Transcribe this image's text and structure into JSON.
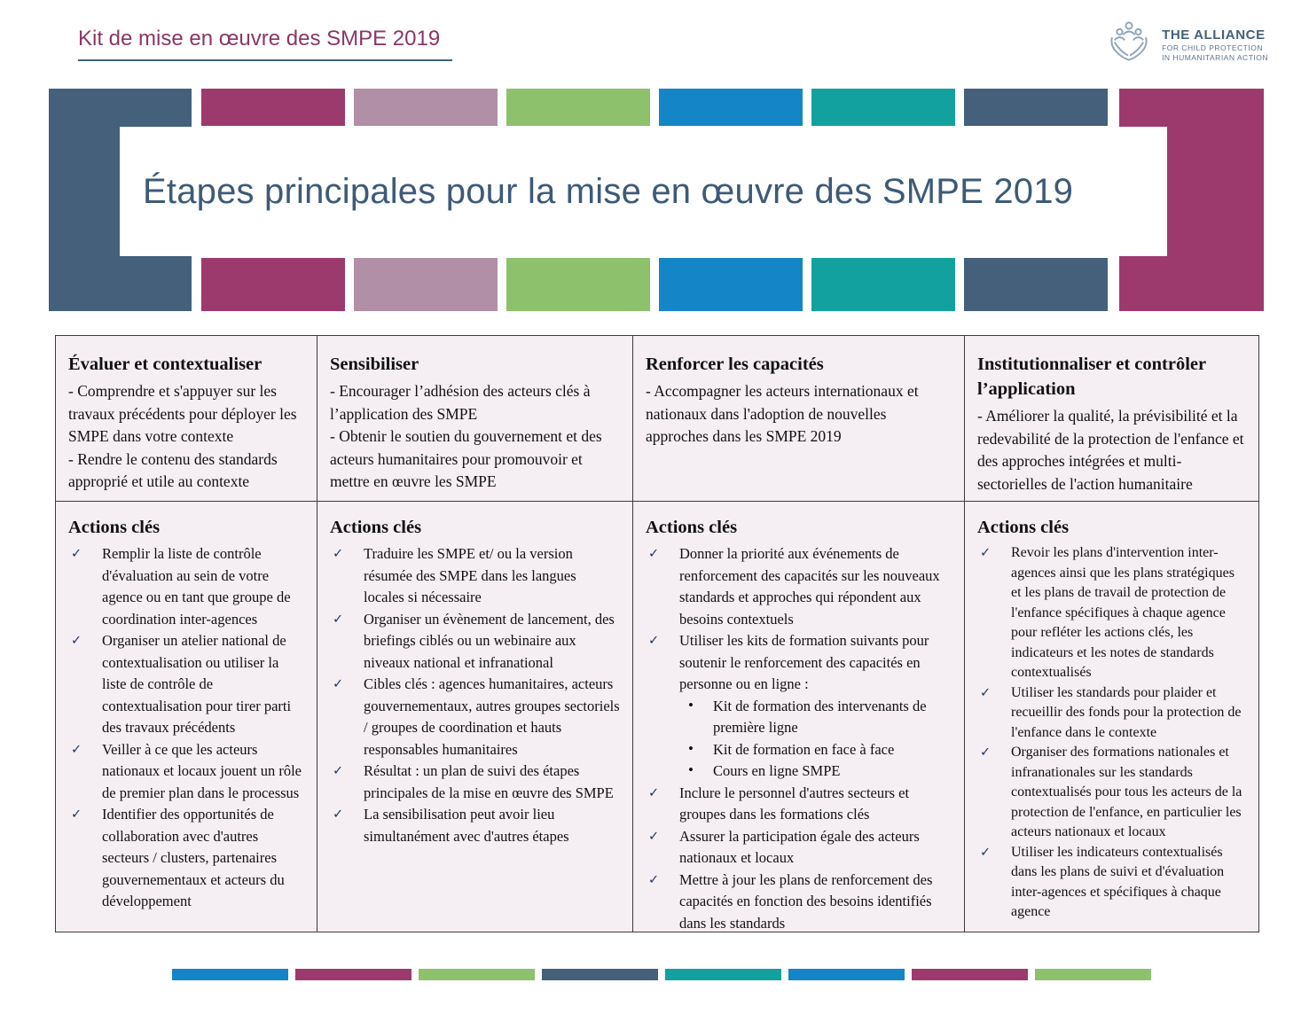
{
  "header": {
    "kicker": "Kit de mise en œuvre des SMPE 2019",
    "title": "Étapes principales pour la mise en œuvre des SMPE 2019"
  },
  "logo": {
    "line1": "THE ALLIANCE",
    "line2": "FOR CHILD PROTECTION",
    "line3": "IN HUMANITARIAN ACTION"
  },
  "icons": {
    "check": "✓",
    "bullet": "•",
    "logo_icon": "hands-holding-children-icon"
  },
  "colors": {
    "slate": "#44607A",
    "plum": "#9C3A6E",
    "mauve": "#B18FA6",
    "green": "#8EC16C",
    "blue": "#1485C6",
    "teal": "#12A19F",
    "title_text": "#3D5A78",
    "kicker_text": "#8A3767",
    "checkmark": "#1F3864",
    "table_bg": "#F5EEF3",
    "table_border": "#3B3B3B"
  },
  "banner": {
    "left_block": "slate",
    "right_block": "plum",
    "row_blocks": [
      "plum",
      "mauve",
      "green",
      "blue",
      "teal",
      "slate"
    ]
  },
  "footer_bar": [
    "blue",
    "plum",
    "green",
    "slate",
    "teal",
    "blue",
    "plum",
    "green"
  ],
  "columns": [
    {
      "title": "Évaluer et contextualiser",
      "description": [
        "- Comprendre et s'appuyer sur les travaux précédents pour déployer les SMPE dans votre contexte",
        "- Rendre le contenu des standards approprié et utile au contexte"
      ],
      "actions_heading": "Actions clés",
      "actions": [
        {
          "text": "Remplir la liste de contrôle d'évaluation au sein de votre agence ou en tant que groupe de coordination inter-agences"
        },
        {
          "text": "Organiser un atelier national de contextualisation ou utiliser la liste de contrôle de contextualisation pour tirer parti des travaux précédents"
        },
        {
          "text": "Veiller à ce que les acteurs nationaux et locaux jouent un rôle de premier plan dans le processus"
        },
        {
          "text": "Identifier des opportunités de collaboration avec d'autres secteurs / clusters, partenaires gouvernementaux et acteurs du développement"
        }
      ]
    },
    {
      "title": "Sensibiliser",
      "description": [
        "- Encourager l’adhésion des acteurs clés à l’application des SMPE",
        "- Obtenir le soutien du gouvernement et des acteurs humanitaires pour promouvoir et mettre en œuvre les SMPE"
      ],
      "actions_heading": "Actions clés",
      "actions": [
        {
          "text": "Traduire les SMPE et/ ou la version résumée des SMPE dans les langues locales si nécessaire"
        },
        {
          "text": "Organiser un évènement de lancement, des briefings ciblés ou un webinaire aux niveaux national et infranational"
        },
        {
          "text": "Cibles clés : agences humanitaires, acteurs gouvernementaux, autres groupes sectoriels / groupes de coordination et hauts responsables humanitaires"
        },
        {
          "text": "Résultat : un plan de suivi des étapes principales de la mise en œuvre des SMPE"
        },
        {
          "text": "La sensibilisation peut avoir lieu simultanément avec d'autres étapes"
        }
      ]
    },
    {
      "title": "Renforcer les capacités",
      "description": [
        "- Accompagner les acteurs internationaux et nationaux dans l'adoption de nouvelles approches dans les SMPE 2019"
      ],
      "actions_heading": "Actions clés",
      "actions": [
        {
          "text": "Donner la priorité aux événements de renforcement des capacités sur les nouveaux standards et approches qui répondent aux besoins contextuels"
        },
        {
          "text": "Utiliser les kits de formation suivants pour soutenir le renforcement des capacités en personne ou en ligne :",
          "sub": [
            "Kit de formation des intervenants de première ligne",
            "Kit de formation en face à face",
            "Cours en ligne SMPE"
          ]
        },
        {
          "text": "Inclure le personnel d'autres secteurs et groupes dans les formations clés"
        },
        {
          "text": "Assurer la participation égale des acteurs nationaux et locaux"
        },
        {
          "text": "Mettre à jour les plans de renforcement des capacités en fonction des besoins identifiés dans les standards"
        }
      ]
    },
    {
      "title": "Institutionnaliser et contrôler l’application",
      "description": [
        "- Améliorer la qualité, la prévisibilité et la redevabilité de la protection de l'enfance et des approches intégrées et multi-sectorielles de l'action humanitaire"
      ],
      "actions_heading": "Actions clés",
      "actions": [
        {
          "text": "Revoir les plans d'intervention inter-agences ainsi que les plans stratégiques et les plans de travail de protection de l'enfance spécifiques à chaque agence pour refléter les actions clés, les indicateurs et les notes de standards contextualisés"
        },
        {
          "text": "Utiliser les standards pour plaider et recueillir des fonds pour la protection de l'enfance dans le contexte"
        },
        {
          "text": "Organiser des formations nationales et infranationales sur les standards contextualisés pour tous les acteurs de la protection de l'enfance, en particulier les acteurs nationaux et locaux"
        },
        {
          "text": "Utiliser les indicateurs contextualisés dans les plans de suivi et d'évaluation inter-agences et spécifiques à chaque agence"
        }
      ]
    }
  ]
}
